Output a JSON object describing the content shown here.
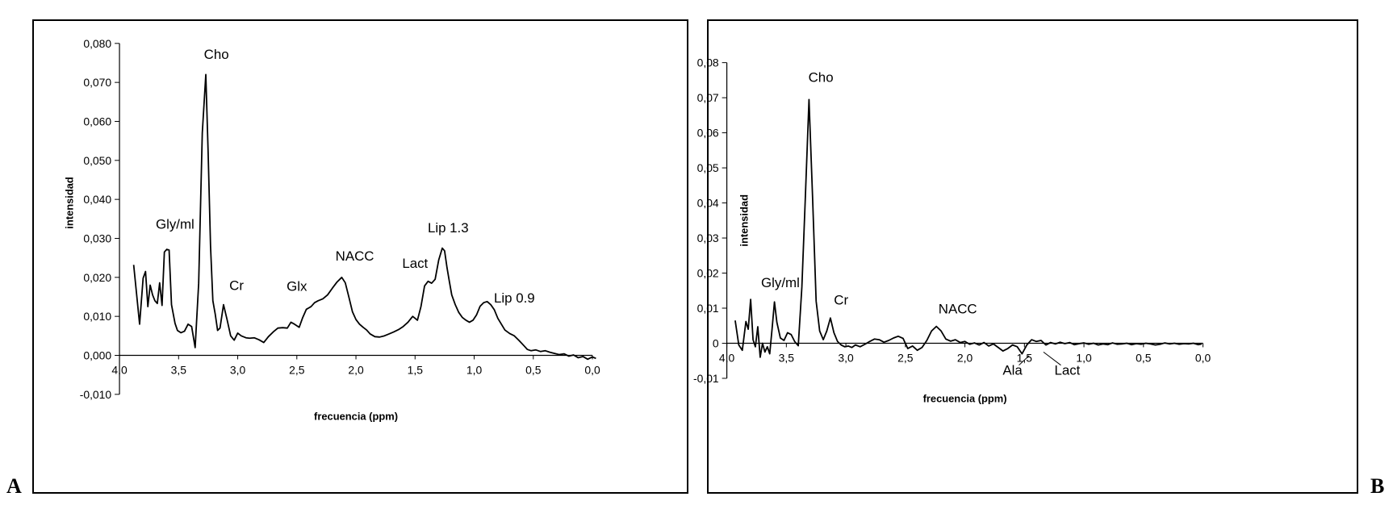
{
  "chart_data": [
    {
      "id": "A",
      "panel_label": "A",
      "type": "line",
      "xlabel": "frecuencia (ppm)",
      "ylabel": "intensidad",
      "xlim": [
        4.0,
        0.0
      ],
      "ylim": [
        -0.01,
        0.08
      ],
      "x_ticks": [
        "4,0",
        "3,5",
        "3,0",
        "2,5",
        "2,0",
        "1,5",
        "1,0",
        "0,5",
        "0,0"
      ],
      "x_tick_values": [
        4.0,
        3.5,
        3.0,
        2.5,
        2.0,
        1.5,
        1.0,
        0.5,
        0.0
      ],
      "y_ticks": [
        "-0,010",
        "0,000",
        "0,010",
        "0,020",
        "0,030",
        "0,040",
        "0,050",
        "0,060",
        "0,070",
        "0,080"
      ],
      "y_tick_values": [
        -0.01,
        0.0,
        0.01,
        0.02,
        0.03,
        0.04,
        0.05,
        0.06,
        0.07,
        0.08
      ],
      "grid": false,
      "series": [
        {
          "color": "#000000",
          "x": [
            3.88,
            3.83,
            3.8,
            3.78,
            3.76,
            3.74,
            3.72,
            3.7,
            3.68,
            3.66,
            3.64,
            3.62,
            3.6,
            3.58,
            3.56,
            3.53,
            3.51,
            3.48,
            3.45,
            3.42,
            3.39,
            3.36,
            3.33,
            3.3,
            3.27,
            3.25,
            3.23,
            3.21,
            3.19,
            3.17,
            3.15,
            3.12,
            3.09,
            3.06,
            3.03,
            3.0,
            2.97,
            2.93,
            2.9,
            2.86,
            2.82,
            2.78,
            2.74,
            2.7,
            2.66,
            2.62,
            2.58,
            2.55,
            2.52,
            2.48,
            2.45,
            2.42,
            2.38,
            2.35,
            2.32,
            2.28,
            2.24,
            2.2,
            2.16,
            2.12,
            2.09,
            2.06,
            2.03,
            2.0,
            1.97,
            1.94,
            1.91,
            1.88,
            1.84,
            1.8,
            1.76,
            1.72,
            1.68,
            1.64,
            1.6,
            1.56,
            1.52,
            1.48,
            1.45,
            1.42,
            1.39,
            1.36,
            1.33,
            1.3,
            1.27,
            1.25,
            1.23,
            1.21,
            1.19,
            1.16,
            1.13,
            1.1,
            1.07,
            1.04,
            1.01,
            0.98,
            0.95,
            0.92,
            0.89,
            0.86,
            0.83,
            0.8,
            0.77,
            0.74,
            0.7,
            0.66,
            0.62,
            0.58,
            0.55,
            0.52,
            0.48,
            0.44,
            0.4,
            0.36,
            0.32,
            0.28,
            0.24,
            0.2,
            0.16,
            0.12,
            0.08,
            0.04,
            0.0,
            -0.03
          ],
          "y": [
            0.0232,
            0.008,
            0.0198,
            0.0215,
            0.0125,
            0.018,
            0.0155,
            0.014,
            0.0133,
            0.0186,
            0.0128,
            0.0265,
            0.0272,
            0.027,
            0.013,
            0.0082,
            0.0064,
            0.0058,
            0.0062,
            0.008,
            0.0074,
            0.002,
            0.0185,
            0.057,
            0.072,
            0.052,
            0.028,
            0.014,
            0.0105,
            0.0064,
            0.007,
            0.013,
            0.0092,
            0.005,
            0.0039,
            0.0057,
            0.005,
            0.0045,
            0.0044,
            0.0045,
            0.004,
            0.0033,
            0.0048,
            0.006,
            0.007,
            0.0071,
            0.007,
            0.0085,
            0.008,
            0.0072,
            0.0097,
            0.0118,
            0.0125,
            0.0135,
            0.014,
            0.0145,
            0.0155,
            0.0172,
            0.0188,
            0.02,
            0.0186,
            0.015,
            0.0112,
            0.0092,
            0.008,
            0.0072,
            0.0065,
            0.0055,
            0.0048,
            0.0047,
            0.005,
            0.0055,
            0.006,
            0.0066,
            0.0074,
            0.0085,
            0.01,
            0.009,
            0.0125,
            0.0178,
            0.019,
            0.0185,
            0.0195,
            0.0245,
            0.0275,
            0.0268,
            0.0225,
            0.019,
            0.0155,
            0.013,
            0.011,
            0.0097,
            0.009,
            0.0085,
            0.009,
            0.0104,
            0.0126,
            0.0135,
            0.0138,
            0.013,
            0.0117,
            0.0095,
            0.008,
            0.0065,
            0.0056,
            0.005,
            0.0038,
            0.0025,
            0.0015,
            0.0012,
            0.0014,
            0.001,
            0.0012,
            0.0008,
            0.0005,
            0.0002,
            0.0004,
            -0.0002,
            0.0001,
            -0.0006,
            -0.0003,
            -0.001,
            -0.0004,
            -0.0008
          ]
        }
      ],
      "annotations": [
        {
          "text": "Cho",
          "x": 3.18,
          "y": 0.076
        },
        {
          "text": "Gly/ml",
          "x": 3.53,
          "y": 0.0325
        },
        {
          "text": "Cr",
          "x": 3.01,
          "y": 0.0168
        },
        {
          "text": "Glx",
          "x": 2.5,
          "y": 0.0165
        },
        {
          "text": "NACC",
          "x": 2.01,
          "y": 0.0243
        },
        {
          "text": "Lact",
          "x": 1.5,
          "y": 0.0224
        },
        {
          "text": "Lip 1.3",
          "x": 1.22,
          "y": 0.0315
        },
        {
          "text": "Lip 0.9",
          "x": 0.66,
          "y": 0.0135
        }
      ]
    },
    {
      "id": "B",
      "panel_label": "B",
      "type": "line",
      "xlabel": "frecuencia (ppm)",
      "ylabel": "intensidad",
      "xlim": [
        4.0,
        0.0
      ],
      "ylim": [
        -0.01,
        0.08
      ],
      "x_ticks": [
        "4,0",
        "3,5",
        "3,0",
        "2,5",
        "2,0",
        "1,5",
        "1,0",
        "0,5",
        "0,0"
      ],
      "x_tick_values": [
        4.0,
        3.5,
        3.0,
        2.5,
        2.0,
        1.5,
        1.0,
        0.5,
        0.0
      ],
      "y_ticks": [
        "-0,01",
        "0",
        "0,01",
        "0,02",
        "0,03",
        "0,04",
        "0,05",
        "0,06",
        "0,07",
        "0,08"
      ],
      "y_tick_values": [
        -0.01,
        0.0,
        0.01,
        0.02,
        0.03,
        0.04,
        0.05,
        0.06,
        0.07,
        0.08
      ],
      "x_axis_at_y": 0,
      "grid": false,
      "series": [
        {
          "color": "#000000",
          "x": [
            3.93,
            3.9,
            3.87,
            3.84,
            3.82,
            3.8,
            3.78,
            3.76,
            3.74,
            3.72,
            3.7,
            3.68,
            3.66,
            3.64,
            3.62,
            3.6,
            3.58,
            3.55,
            3.52,
            3.49,
            3.46,
            3.43,
            3.4,
            3.37,
            3.34,
            3.31,
            3.28,
            3.25,
            3.22,
            3.19,
            3.16,
            3.13,
            3.1,
            3.07,
            3.04,
            3.01,
            2.98,
            2.95,
            2.92,
            2.88,
            2.84,
            2.8,
            2.76,
            2.72,
            2.68,
            2.64,
            2.6,
            2.56,
            2.52,
            2.48,
            2.44,
            2.4,
            2.36,
            2.32,
            2.28,
            2.24,
            2.2,
            2.16,
            2.12,
            2.08,
            2.04,
            2.0,
            1.96,
            1.92,
            1.88,
            1.84,
            1.8,
            1.76,
            1.72,
            1.68,
            1.64,
            1.6,
            1.56,
            1.52,
            1.48,
            1.44,
            1.4,
            1.36,
            1.32,
            1.28,
            1.24,
            1.2,
            1.16,
            1.12,
            1.08,
            1.04,
            1.0,
            0.96,
            0.92,
            0.88,
            0.84,
            0.8,
            0.76,
            0.72,
            0.68,
            0.64,
            0.6,
            0.56,
            0.52,
            0.48,
            0.44,
            0.4,
            0.36,
            0.32,
            0.28,
            0.24,
            0.2,
            0.16,
            0.12,
            0.08,
            0.04,
            0.01
          ],
          "y": [
            0.0065,
            -0.0005,
            -0.002,
            0.0062,
            0.004,
            0.0125,
            0.001,
            -0.001,
            0.0047,
            -0.004,
            0.0,
            -0.0025,
            -0.001,
            -0.003,
            0.004,
            0.0118,
            0.006,
            0.0015,
            0.0008,
            0.003,
            0.0025,
            0.0005,
            -0.0007,
            0.016,
            0.042,
            0.0695,
            0.042,
            0.012,
            0.0035,
            0.001,
            0.0035,
            0.0072,
            0.003,
            0.0005,
            -0.0005,
            -0.001,
            -0.0008,
            -0.0012,
            -0.0005,
            -0.001,
            -0.0003,
            0.0005,
            0.0012,
            0.001,
            0.0003,
            0.0008,
            0.0015,
            0.002,
            0.0014,
            -0.0015,
            -0.0008,
            -0.002,
            -0.0012,
            0.0008,
            0.0035,
            0.0048,
            0.0035,
            0.0012,
            0.0006,
            0.001,
            0.0002,
            0.0005,
            -0.0003,
            0.0001,
            -0.0005,
            0.0002,
            -0.0008,
            -0.0002,
            -0.0012,
            -0.0022,
            -0.0015,
            -0.0005,
            -0.001,
            -0.003,
            -0.0005,
            0.001,
            0.0005,
            0.0008,
            -0.0005,
            0.0002,
            -0.0002,
            0.0003,
            -0.0001,
            0.0002,
            -0.0004,
            -0.0001,
            0.0001,
            -0.0003,
            0.0,
            -0.0005,
            -0.0002,
            -0.0004,
            0.0001,
            -0.0003,
            -0.0002,
            0.0,
            -0.0004,
            -0.0001,
            -0.0003,
            0.0,
            -0.0002,
            -0.0005,
            -0.0003,
            0.0001,
            -0.0002,
            0.0,
            -0.0003,
            -0.0001,
            -0.0002,
            0.0,
            -0.0004,
            -0.0002
          ]
        }
      ],
      "annotations": [
        {
          "text": "Cho",
          "x": 3.21,
          "y": 0.0745
        },
        {
          "text": "Gly/ml",
          "x": 3.55,
          "y": 0.016
        },
        {
          "text": "Cr",
          "x": 3.04,
          "y": 0.011
        },
        {
          "text": "NACC",
          "x": 2.06,
          "y": 0.0085
        }
      ],
      "callouts": [
        {
          "text": "Ala",
          "x": 1.6,
          "y": -0.009,
          "to_x": 1.46,
          "to_y": -0.0035
        },
        {
          "text": "Lact",
          "x": 1.14,
          "y": -0.009,
          "to_x": 1.34,
          "to_y": -0.0025
        }
      ]
    }
  ]
}
